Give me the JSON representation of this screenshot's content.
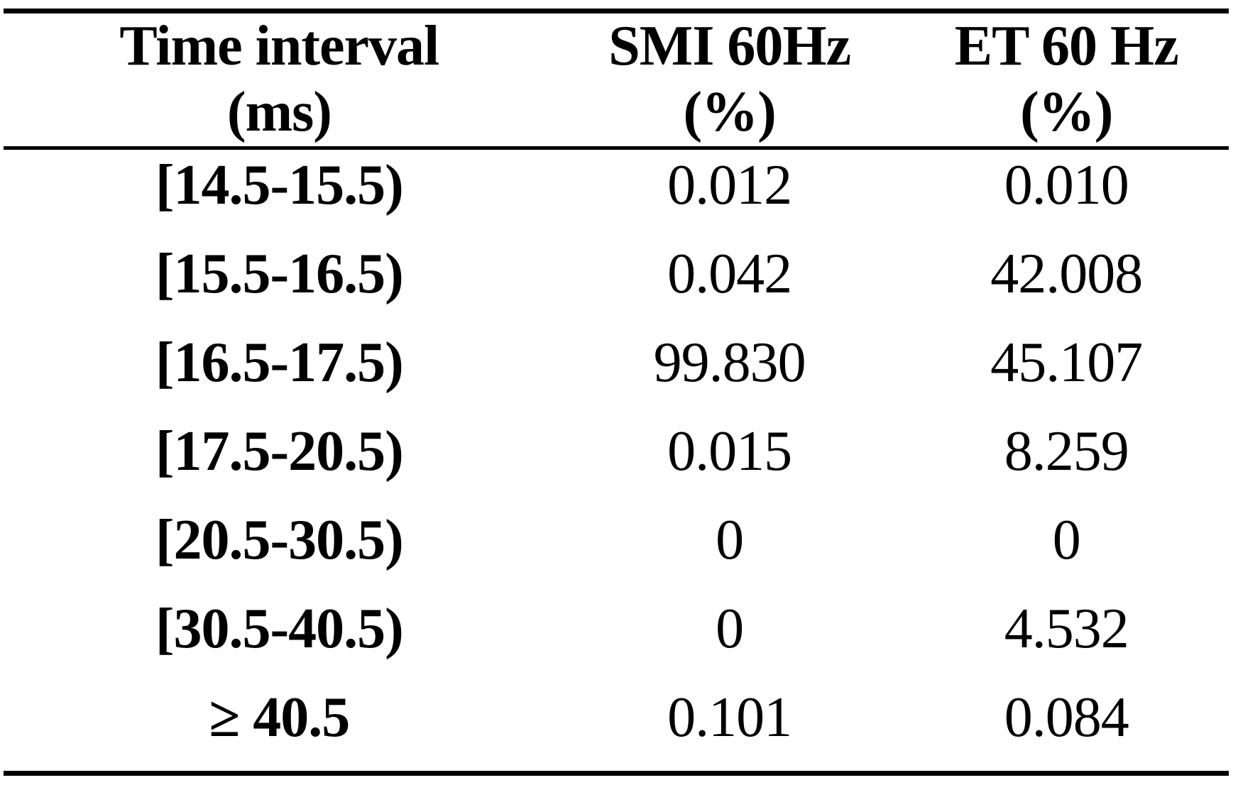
{
  "page": {
    "background": "#ffffff",
    "text_color": "#000000",
    "rule_color": "#000000"
  },
  "table": {
    "columns": [
      {
        "line1": "Time interval",
        "line2": "(ms)"
      },
      {
        "line1": "SMI 60Hz",
        "line2": "(%)"
      },
      {
        "line1": "ET 60 Hz",
        "line2": "(%)"
      }
    ],
    "rows": [
      {
        "interval": "[14.5-15.5)",
        "smi": "0.012",
        "et": "0.010"
      },
      {
        "interval": "[15.5-16.5)",
        "smi": "0.042",
        "et": "42.008"
      },
      {
        "interval": "[16.5-17.5)",
        "smi": "99.830",
        "et": "45.107"
      },
      {
        "interval": "[17.5-20.5)",
        "smi": "0.015",
        "et": "8.259"
      },
      {
        "interval": "[20.5-30.5)",
        "smi": "0",
        "et": "0"
      },
      {
        "interval": "[30.5-40.5)",
        "smi": "0",
        "et": "4.532"
      },
      {
        "interval": "≥ 40.5",
        "smi": "0.101",
        "et": "0.084"
      }
    ]
  },
  "chart_data": {
    "type": "table",
    "columns": [
      "Time interval (ms)",
      "SMI 60Hz (%)",
      "ET 60 Hz (%)"
    ],
    "rows": [
      [
        "[14.5-15.5)",
        0.012,
        0.01
      ],
      [
        "[15.5-16.5)",
        0.042,
        42.008
      ],
      [
        "[16.5-17.5)",
        99.83,
        45.107
      ],
      [
        "[17.5-20.5)",
        0.015,
        8.259
      ],
      [
        "[20.5-30.5)",
        0,
        0
      ],
      [
        "[30.5-40.5)",
        0,
        4.532
      ],
      [
        "≥ 40.5",
        0.101,
        0.084
      ]
    ]
  }
}
